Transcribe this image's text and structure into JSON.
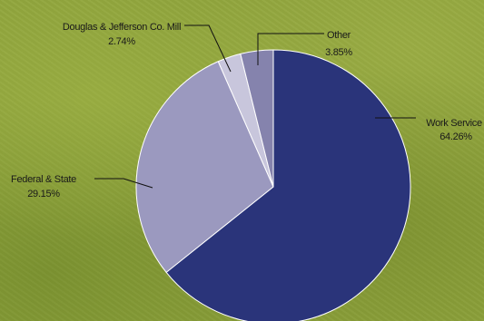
{
  "chart_data": {
    "type": "pie",
    "start_angle_deg": 0,
    "direction": "clockwise",
    "slices": [
      {
        "label": "Work Service",
        "value": 64.26,
        "value_label": "64.26%",
        "color": "#2a347a"
      },
      {
        "label": "Federal & State",
        "value": 29.15,
        "value_label": "29.15%",
        "color": "#9b99bf"
      },
      {
        "label": "Douglas & Jefferson Co. Mill",
        "value": 2.74,
        "value_label": "2.74%",
        "color": "#c8c6dc"
      },
      {
        "label": "Other",
        "value": 3.85,
        "value_label": "3.85%",
        "color": "#8583ad"
      }
    ]
  }
}
